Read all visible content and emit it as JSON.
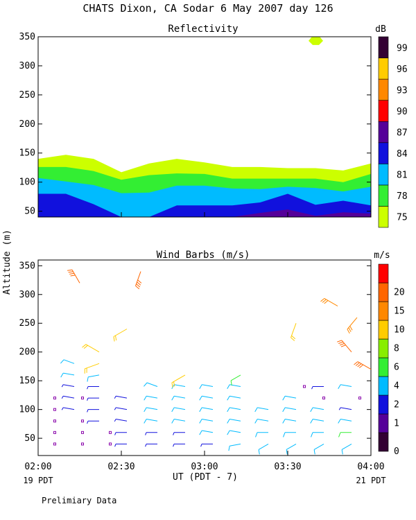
{
  "header": {
    "title": "CHATS Dixon, CA  Sodar   6 May 2007  day 126"
  },
  "panels": {
    "top": {
      "title": "Reflectivity",
      "unit": "dB"
    },
    "bottom": {
      "title": "Wind Barbs (m/s)",
      "unit": "m/s"
    }
  },
  "ylabel": "Altitude (m)",
  "xlabel": "UT  (PDT - 7)",
  "x_ticks": [
    "02:00",
    "02:30",
    "03:00",
    "03:30",
    "04:00"
  ],
  "x_left_note": "19 PDT",
  "x_right_note": "21 PDT",
  "footer_note": "Prelimiary Data",
  "chart_data": [
    {
      "type": "area",
      "title": "Reflectivity",
      "ylim": [
        40,
        350
      ],
      "y_ticks": [
        50,
        100,
        150,
        200,
        250,
        300,
        350
      ],
      "xlim": [
        0,
        120
      ],
      "colorbar": {
        "label": "dB",
        "levels": [
          75,
          78,
          81,
          84,
          87,
          90,
          93,
          96,
          99
        ],
        "colors": [
          "#ccff00",
          "#33ee33",
          "#00bbff",
          "#1111dd",
          "#550099",
          "#ff0000",
          "#ff8800",
          "#ffcc00",
          "#330033"
        ]
      },
      "x_minutes": [
        0,
        10,
        20,
        30,
        40,
        50,
        60,
        70,
        80,
        90,
        100,
        110,
        120
      ],
      "contours": [
        {
          "level": 75,
          "top": [
            140,
            147,
            140,
            117,
            132,
            140,
            134,
            126,
            126,
            124,
            124,
            120,
            132
          ]
        },
        {
          "level": 78,
          "top": [
            126,
            126,
            119,
            104,
            112,
            115,
            114,
            106,
            106,
            106,
            106,
            100,
            114
          ]
        },
        {
          "level": 81,
          "top": [
            107,
            101,
            95,
            81,
            82,
            94,
            94,
            89,
            88,
            92,
            90,
            84,
            92
          ]
        },
        {
          "level": 84,
          "top": [
            80,
            80,
            62,
            30,
            30,
            60,
            60,
            60,
            65,
            80,
            61,
            68,
            60
          ]
        },
        {
          "level": 87,
          "top": [
            40,
            40,
            40,
            40,
            40,
            40,
            40,
            40,
            47,
            53,
            42,
            48,
            46
          ]
        }
      ],
      "features": [
        {
          "level": 75,
          "x_minutes": 100,
          "y": 343
        }
      ]
    },
    {
      "type": "scatter",
      "title": "Wind Barbs (m/s)",
      "ylim": [
        20,
        360
      ],
      "y_ticks": [
        50,
        100,
        150,
        200,
        250,
        300,
        350
      ],
      "xlim": [
        0,
        120
      ],
      "colorbar": {
        "label": "m/s",
        "levels": [
          0,
          1,
          2,
          4,
          6,
          8,
          10,
          15,
          20
        ],
        "colors": [
          "#330033",
          "#550099",
          "#1111dd",
          "#00bbff",
          "#33ee33",
          "#88ee00",
          "#ffcc00",
          "#ff8800",
          "#ff6600",
          "#ff0000"
        ]
      },
      "barbs": [
        {
          "t": 6,
          "z": 40,
          "speed": 0
        },
        {
          "t": 6,
          "z": 60,
          "speed": 0
        },
        {
          "t": 6,
          "z": 80,
          "speed": 0
        },
        {
          "t": 6,
          "z": 100,
          "speed": 0
        },
        {
          "t": 6,
          "z": 120,
          "speed": 0
        },
        {
          "t": 13,
          "z": 100,
          "speed": 2.5,
          "dir": 280
        },
        {
          "t": 13,
          "z": 120,
          "speed": 3,
          "dir": 280
        },
        {
          "t": 13,
          "z": 140,
          "speed": 3.5,
          "dir": 280
        },
        {
          "t": 13,
          "z": 160,
          "speed": 4,
          "dir": 280
        },
        {
          "t": 13,
          "z": 180,
          "speed": 4.5,
          "dir": 290
        },
        {
          "t": 16,
          "z": 40,
          "speed": 0
        },
        {
          "t": 16,
          "z": 60,
          "speed": 0
        },
        {
          "t": 16,
          "z": 80,
          "speed": 0
        },
        {
          "t": 16,
          "z": 120,
          "speed": 0
        },
        {
          "t": 15,
          "z": 320,
          "speed": 20,
          "dir": 330
        },
        {
          "t": 22,
          "z": 80,
          "speed": 2,
          "dir": 270
        },
        {
          "t": 22,
          "z": 100,
          "speed": 2,
          "dir": 270
        },
        {
          "t": 22,
          "z": 120,
          "speed": 3,
          "dir": 270
        },
        {
          "t": 22,
          "z": 140,
          "speed": 3.5,
          "dir": 270
        },
        {
          "t": 22,
          "z": 160,
          "speed": 5,
          "dir": 260
        },
        {
          "t": 22,
          "z": 180,
          "speed": 10,
          "dir": 250
        },
        {
          "t": 22,
          "z": 200,
          "speed": 12,
          "dir": 300
        },
        {
          "t": 26,
          "z": 40,
          "speed": 0
        },
        {
          "t": 26,
          "z": 60,
          "speed": 0
        },
        {
          "t": 32,
          "z": 40,
          "speed": 2,
          "dir": 270
        },
        {
          "t": 32,
          "z": 60,
          "speed": 2.5,
          "dir": 270
        },
        {
          "t": 32,
          "z": 80,
          "speed": 3,
          "dir": 280
        },
        {
          "t": 32,
          "z": 100,
          "speed": 3,
          "dir": 280
        },
        {
          "t": 32,
          "z": 120,
          "speed": 3,
          "dir": 280
        },
        {
          "t": 32,
          "z": 240,
          "speed": 12,
          "dir": 240
        },
        {
          "t": 37,
          "z": 340,
          "speed": 20,
          "dir": 200
        },
        {
          "t": 43,
          "z": 40,
          "speed": 2,
          "dir": 270
        },
        {
          "t": 43,
          "z": 60,
          "speed": 3,
          "dir": 270
        },
        {
          "t": 43,
          "z": 80,
          "speed": 4,
          "dir": 280
        },
        {
          "t": 43,
          "z": 100,
          "speed": 4,
          "dir": 280
        },
        {
          "t": 43,
          "z": 120,
          "speed": 4.5,
          "dir": 280
        },
        {
          "t": 43,
          "z": 140,
          "speed": 5,
          "dir": 290
        },
        {
          "t": 53,
          "z": 40,
          "speed": 3,
          "dir": 270
        },
        {
          "t": 53,
          "z": 60,
          "speed": 3.5,
          "dir": 270
        },
        {
          "t": 53,
          "z": 80,
          "speed": 4.5,
          "dir": 280
        },
        {
          "t": 53,
          "z": 100,
          "speed": 5,
          "dir": 280
        },
        {
          "t": 53,
          "z": 120,
          "speed": 5,
          "dir": 280
        },
        {
          "t": 53,
          "z": 140,
          "speed": 5,
          "dir": 280
        },
        {
          "t": 53,
          "z": 160,
          "speed": 12,
          "dir": 240
        },
        {
          "t": 63,
          "z": 40,
          "speed": 3,
          "dir": 270
        },
        {
          "t": 63,
          "z": 60,
          "speed": 4,
          "dir": 280
        },
        {
          "t": 63,
          "z": 80,
          "speed": 5,
          "dir": 280
        },
        {
          "t": 63,
          "z": 100,
          "speed": 5,
          "dir": 280
        },
        {
          "t": 63,
          "z": 120,
          "speed": 5,
          "dir": 280
        },
        {
          "t": 63,
          "z": 140,
          "speed": 5.5,
          "dir": 280
        },
        {
          "t": 73,
          "z": 40,
          "speed": 4.5,
          "dir": 260
        },
        {
          "t": 73,
          "z": 60,
          "speed": 4.5,
          "dir": 280
        },
        {
          "t": 73,
          "z": 80,
          "speed": 5,
          "dir": 280
        },
        {
          "t": 73,
          "z": 100,
          "speed": 5,
          "dir": 280
        },
        {
          "t": 73,
          "z": 120,
          "speed": 5,
          "dir": 280
        },
        {
          "t": 73,
          "z": 140,
          "speed": 5.5,
          "dir": 280
        },
        {
          "t": 73,
          "z": 160,
          "speed": 6,
          "dir": 240
        },
        {
          "t": 83,
          "z": 40,
          "speed": 5,
          "dir": 240
        },
        {
          "t": 83,
          "z": 60,
          "speed": 5,
          "dir": 270
        },
        {
          "t": 83,
          "z": 80,
          "speed": 5,
          "dir": 280
        },
        {
          "t": 83,
          "z": 100,
          "speed": 5,
          "dir": 280
        },
        {
          "t": 93,
          "z": 40,
          "speed": 5,
          "dir": 240
        },
        {
          "t": 93,
          "z": 60,
          "speed": 5,
          "dir": 270
        },
        {
          "t": 93,
          "z": 80,
          "speed": 5,
          "dir": 280
        },
        {
          "t": 93,
          "z": 100,
          "speed": 5,
          "dir": 280
        },
        {
          "t": 93,
          "z": 120,
          "speed": 5,
          "dir": 280
        },
        {
          "t": 93,
          "z": 250,
          "speed": 12,
          "dir": 200
        },
        {
          "t": 96,
          "z": 140,
          "speed": 0
        },
        {
          "t": 103,
          "z": 40,
          "speed": 5,
          "dir": 240
        },
        {
          "t": 103,
          "z": 60,
          "speed": 5,
          "dir": 270
        },
        {
          "t": 103,
          "z": 80,
          "speed": 5,
          "dir": 280
        },
        {
          "t": 103,
          "z": 100,
          "speed": 4,
          "dir": 280
        },
        {
          "t": 103,
          "z": 120,
          "speed": 0
        },
        {
          "t": 103,
          "z": 140,
          "speed": 2,
          "dir": 270
        },
        {
          "t": 108,
          "z": 280,
          "speed": 15,
          "dir": 300
        },
        {
          "t": 113,
          "z": 40,
          "speed": 5,
          "dir": 240
        },
        {
          "t": 113,
          "z": 60,
          "speed": 6,
          "dir": 270
        },
        {
          "t": 113,
          "z": 80,
          "speed": 5,
          "dir": 280
        },
        {
          "t": 113,
          "z": 100,
          "speed": 3.5,
          "dir": 280
        },
        {
          "t": 113,
          "z": 140,
          "speed": 5,
          "dir": 280
        },
        {
          "t": 113,
          "z": 200,
          "speed": 20,
          "dir": 320
        },
        {
          "t": 115,
          "z": 260,
          "speed": 15,
          "dir": 220
        },
        {
          "t": 116,
          "z": 120,
          "speed": 0
        },
        {
          "t": 120,
          "z": 170,
          "speed": 20,
          "dir": 300
        }
      ]
    }
  ]
}
